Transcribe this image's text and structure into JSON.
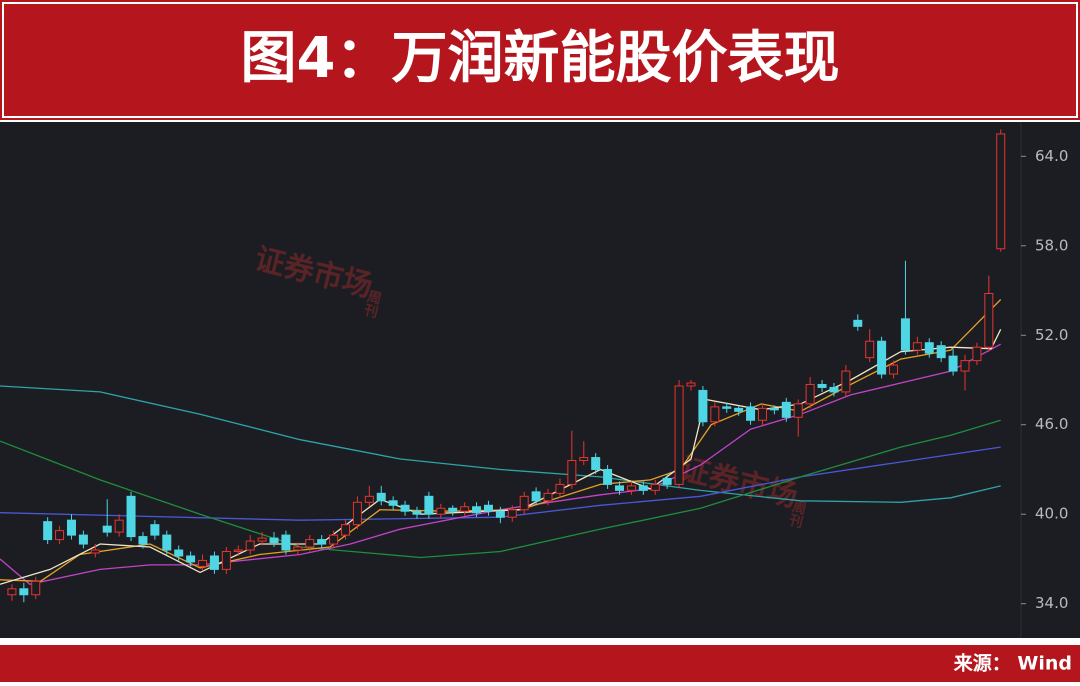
{
  "chart_data": {
    "type": "candlestick",
    "title": "图4：万润新能股价表现",
    "source": "来源： Wind",
    "watermark": "证券市场",
    "watermark_sub": "周刊",
    "xlim": [
      -1,
      84.7
    ],
    "ylim": [
      31.7,
      66.3
    ],
    "yticks": [
      {
        "value": 34,
        "label": "34.0"
      },
      {
        "value": 40,
        "label": "40.0"
      },
      {
        "value": 46,
        "label": "46.0"
      },
      {
        "value": 52,
        "label": "52.0"
      },
      {
        "value": 58,
        "label": "58.0"
      },
      {
        "value": 64,
        "label": "64.0"
      }
    ],
    "up_color": "#e8342e",
    "down_color": "#4fd6e4",
    "open": [
      34.6,
      35.0,
      34.6,
      39.5,
      38.3,
      39.6,
      38.6,
      37.4,
      39.2,
      38.8,
      41.2,
      38.5,
      39.3,
      38.6,
      37.6,
      37.2,
      36.5,
      37.2,
      36.3,
      37.5,
      37.6,
      38.2,
      38.4,
      38.6,
      37.6,
      37.8,
      38.3,
      38.0,
      38.6,
      39.3,
      40.8,
      41.4,
      40.9,
      40.6,
      40.2,
      41.2,
      40.0,
      40.4,
      40.2,
      40.5,
      40.6,
      40.2,
      39.8,
      40.3,
      41.5,
      40.9,
      41.4,
      42.0,
      43.6,
      43.8,
      43.0,
      41.9,
      41.6,
      41.9,
      41.6,
      42.4,
      42.0,
      48.6,
      48.3,
      46.2,
      47.2,
      47.1,
      47.2,
      46.3,
      47.1,
      47.5,
      46.5,
      47.4,
      48.7,
      48.5,
      48.2,
      53.0,
      50.5,
      51.6,
      49.4,
      53.1,
      51.0,
      51.5,
      51.3,
      50.6,
      49.6,
      50.3,
      51.2,
      57.8
    ],
    "high": [
      35.3,
      35.4,
      35.8,
      39.8,
      39.2,
      40.0,
      38.9,
      38.0,
      41.0,
      40.0,
      41.5,
      38.8,
      39.6,
      38.9,
      37.9,
      37.5,
      37.3,
      37.5,
      37.8,
      37.9,
      38.6,
      38.8,
      38.8,
      38.9,
      38.1,
      38.6,
      38.6,
      38.9,
      39.6,
      41.2,
      41.9,
      41.9,
      41.2,
      40.9,
      40.5,
      41.5,
      40.7,
      40.6,
      40.8,
      40.8,
      40.9,
      40.5,
      40.6,
      41.5,
      41.8,
      41.7,
      42.4,
      45.6,
      44.9,
      44.1,
      43.3,
      42.2,
      42.2,
      42.2,
      42.3,
      42.7,
      49.0,
      49.0,
      48.6,
      47.5,
      47.5,
      47.3,
      47.5,
      47.4,
      47.3,
      47.8,
      47.7,
      49.2,
      49.0,
      48.8,
      50.0,
      53.4,
      52.4,
      51.9,
      50.3,
      57.0,
      51.9,
      51.8,
      51.6,
      51.1,
      50.7,
      51.5,
      56.0,
      65.8
    ],
    "low": [
      34.2,
      34.1,
      34.3,
      38.0,
      38.0,
      38.3,
      37.7,
      37.1,
      38.5,
      38.5,
      38.2,
      37.7,
      38.3,
      37.3,
      36.9,
      36.5,
      36.2,
      36.0,
      36.0,
      37.2,
      37.3,
      37.9,
      37.8,
      37.3,
      37.3,
      37.5,
      37.7,
      37.7,
      38.3,
      39.0,
      40.5,
      40.6,
      40.3,
      39.9,
      39.7,
      39.7,
      39.7,
      39.9,
      39.9,
      39.8,
      39.9,
      39.4,
      39.5,
      40.0,
      40.6,
      40.6,
      41.1,
      41.7,
      43.3,
      42.7,
      41.7,
      41.3,
      41.3,
      41.3,
      41.3,
      41.7,
      41.8,
      48.3,
      45.9,
      45.9,
      46.8,
      46.6,
      46.0,
      46.0,
      46.7,
      46.2,
      45.2,
      47.1,
      48.2,
      47.9,
      47.9,
      52.3,
      50.2,
      49.1,
      49.1,
      50.7,
      50.7,
      50.5,
      50.2,
      49.3,
      48.3,
      50.0,
      50.9,
      57.6
    ],
    "close": [
      35.0,
      34.6,
      35.5,
      38.3,
      38.9,
      38.6,
      38.0,
      37.6,
      38.8,
      39.6,
      38.5,
      38.0,
      38.6,
      37.6,
      37.2,
      36.8,
      36.9,
      36.3,
      37.5,
      37.6,
      38.2,
      38.4,
      38.1,
      37.6,
      37.8,
      38.3,
      38.0,
      38.6,
      39.3,
      40.8,
      41.2,
      40.9,
      40.6,
      40.2,
      40.0,
      40.0,
      40.4,
      40.2,
      40.5,
      40.1,
      40.2,
      39.8,
      40.3,
      41.2,
      40.9,
      41.4,
      42.0,
      43.6,
      43.8,
      43.0,
      42.0,
      41.6,
      41.9,
      41.6,
      42.0,
      42.0,
      48.6,
      48.8,
      46.2,
      47.2,
      47.1,
      46.9,
      46.3,
      47.1,
      47.0,
      46.5,
      47.4,
      48.7,
      48.5,
      48.2,
      49.6,
      52.6,
      51.6,
      49.4,
      50.0,
      51.0,
      51.5,
      50.8,
      50.5,
      49.6,
      50.3,
      51.2,
      54.8,
      65.5
    ],
    "lines": [
      {
        "color": "#2fa3a6",
        "x": [
          -1.0,
          7.4,
          15.8,
          24.2,
          32.6,
          41.0,
          49.4,
          57.8,
          66.2,
          74.6,
          78.8,
          83.0
        ],
        "values": [
          48.6,
          48.2,
          46.7,
          45.0,
          43.7,
          43.0,
          42.5,
          41.6,
          40.9,
          40.8,
          41.1,
          41.9
        ]
      },
      {
        "color": "#4a58d6",
        "x": [
          -1.0,
          24.2,
          41.0,
          49.4,
          57.8,
          66.2,
          74.6,
          83.0
        ],
        "values": [
          40.1,
          39.6,
          39.8,
          40.6,
          41.2,
          42.5,
          43.5,
          44.5
        ]
      },
      {
        "color": "#1f8e3c",
        "x": [
          -1.0,
          7.4,
          15.8,
          24.2,
          34.3,
          41.0,
          49.4,
          57.8,
          66.2,
          74.6,
          78.8,
          83.0
        ],
        "values": [
          44.9,
          42.3,
          40.0,
          37.8,
          37.1,
          37.5,
          39.0,
          40.4,
          42.5,
          44.5,
          45.3,
          46.3
        ]
      },
      {
        "color": "#c244c8",
        "x": [
          -1.0,
          1.5,
          7.4,
          11.6,
          15.8,
          24.2,
          28.4,
          32.6,
          41.0,
          49.4,
          53.6,
          57.8,
          62.0,
          66.2,
          70.4,
          74.6,
          78.8,
          83.0
        ],
        "values": [
          37.0,
          35.3,
          36.3,
          36.6,
          36.6,
          37.3,
          38.0,
          39.0,
          40.3,
          41.3,
          41.7,
          43.3,
          45.7,
          46.7,
          48.0,
          48.8,
          49.6,
          51.4
        ]
      },
      {
        "color": "#e3a126",
        "x": [
          -1.0,
          2.4,
          5.7,
          11.6,
          15.8,
          20.8,
          26.7,
          30.9,
          36.8,
          42.7,
          49.4,
          53.6,
          56.1,
          58.7,
          62.9,
          66.2,
          70.4,
          74.6,
          78.8,
          83.0
        ],
        "values": [
          35.6,
          35.5,
          37.3,
          38.0,
          36.4,
          37.3,
          37.8,
          40.3,
          40.2,
          40.3,
          42.0,
          42.3,
          43.0,
          46.0,
          47.4,
          46.9,
          48.7,
          50.4,
          51.0,
          54.4
        ]
      },
      {
        "color": "#efe6c4",
        "x": [
          -1.0,
          3.2,
          7.4,
          11.6,
          15.8,
          20.8,
          25.9,
          30.9,
          34.3,
          42.7,
          49.4,
          53.6,
          57.0,
          58.2,
          62.9,
          66.2,
          70.4,
          74.6,
          78.8,
          82.2,
          83.0
        ],
        "values": [
          35.3,
          36.3,
          38.0,
          37.8,
          36.1,
          38.0,
          38.0,
          41.0,
          40.0,
          40.3,
          43.0,
          41.7,
          43.7,
          47.7,
          47.0,
          47.4,
          49.0,
          50.9,
          51.2,
          51.1,
          52.4
        ]
      }
    ]
  }
}
